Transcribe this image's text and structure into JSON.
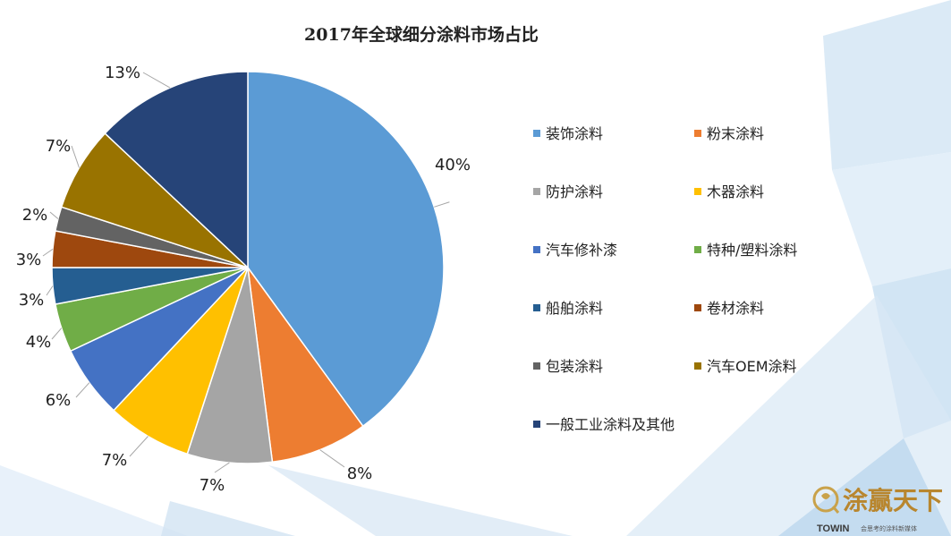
{
  "chart_data": {
    "type": "pie",
    "title": "2017年全球细分涂料市场占比",
    "slices": [
      {
        "name": "装饰涂料",
        "value": 40,
        "label": "40%",
        "color": "#5B9BD5"
      },
      {
        "name": "粉末涂料",
        "value": 8,
        "label": "8%",
        "color": "#ED7D31"
      },
      {
        "name": "防护涂料",
        "value": 7,
        "label": "7%",
        "color": "#A5A5A5"
      },
      {
        "name": "木器涂料",
        "value": 7,
        "label": "7%",
        "color": "#FFC000"
      },
      {
        "name": "汽车修补漆",
        "value": 6,
        "label": "6%",
        "color": "#4472C4"
      },
      {
        "name": "特种/塑料涂料",
        "value": 4,
        "label": "4%",
        "color": "#70AD47"
      },
      {
        "name": "船舶涂料",
        "value": 3,
        "label": "3%",
        "color": "#255E91"
      },
      {
        "name": "卷材涂料",
        "value": 3,
        "label": "3%",
        "color": "#9E480E"
      },
      {
        "name": "包装涂料",
        "value": 2,
        "label": "2%",
        "color": "#636363"
      },
      {
        "name": "汽车OEM涂料",
        "value": 7,
        "label": "7%",
        "color": "#997300"
      },
      {
        "name": "一般工业涂料及其他",
        "value": 13,
        "label": "13%",
        "color": "#264478"
      }
    ],
    "legend_position": "right"
  },
  "watermark": {
    "brand_cn": "涂赢天下",
    "brand_en": "TOWIN",
    "slogan": "会思考的涂料新媒体"
  }
}
